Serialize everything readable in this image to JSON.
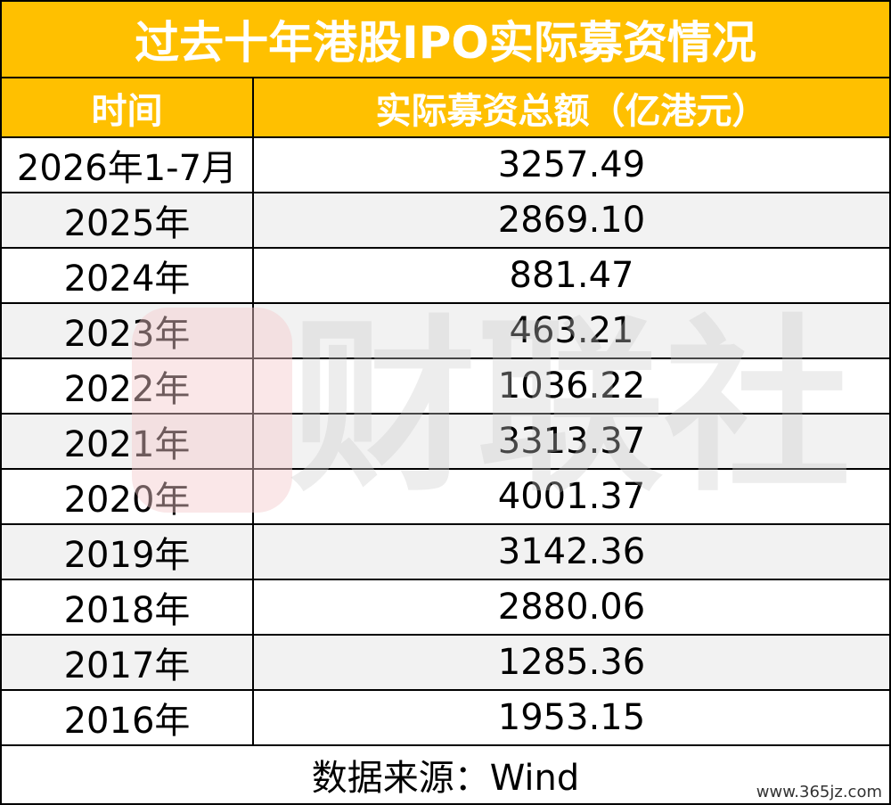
{
  "title": "过去十年港股IPO实际募资情况",
  "table": {
    "header": [
      "时间",
      "实际募资总额（亿港元）"
    ],
    "rows": [
      [
        "2026年1-7月",
        "3257.49"
      ],
      [
        "2025年",
        "2869.10"
      ],
      [
        "2024年",
        "881.47"
      ],
      [
        "2023年",
        "463.21"
      ],
      [
        "2022年",
        "1036.22"
      ],
      [
        "2021年",
        "3313.37"
      ],
      [
        "2020年",
        "4001.37"
      ],
      [
        "2019年",
        "3142.36"
      ],
      [
        "2018年",
        "2880.06"
      ],
      [
        "2017年",
        "1285.36"
      ],
      [
        "2016年",
        "1953.15"
      ]
    ]
  },
  "source": "数据来源：Wind",
  "watermark": {
    "brand": "财联社",
    "site": "www.365jz.com"
  }
}
